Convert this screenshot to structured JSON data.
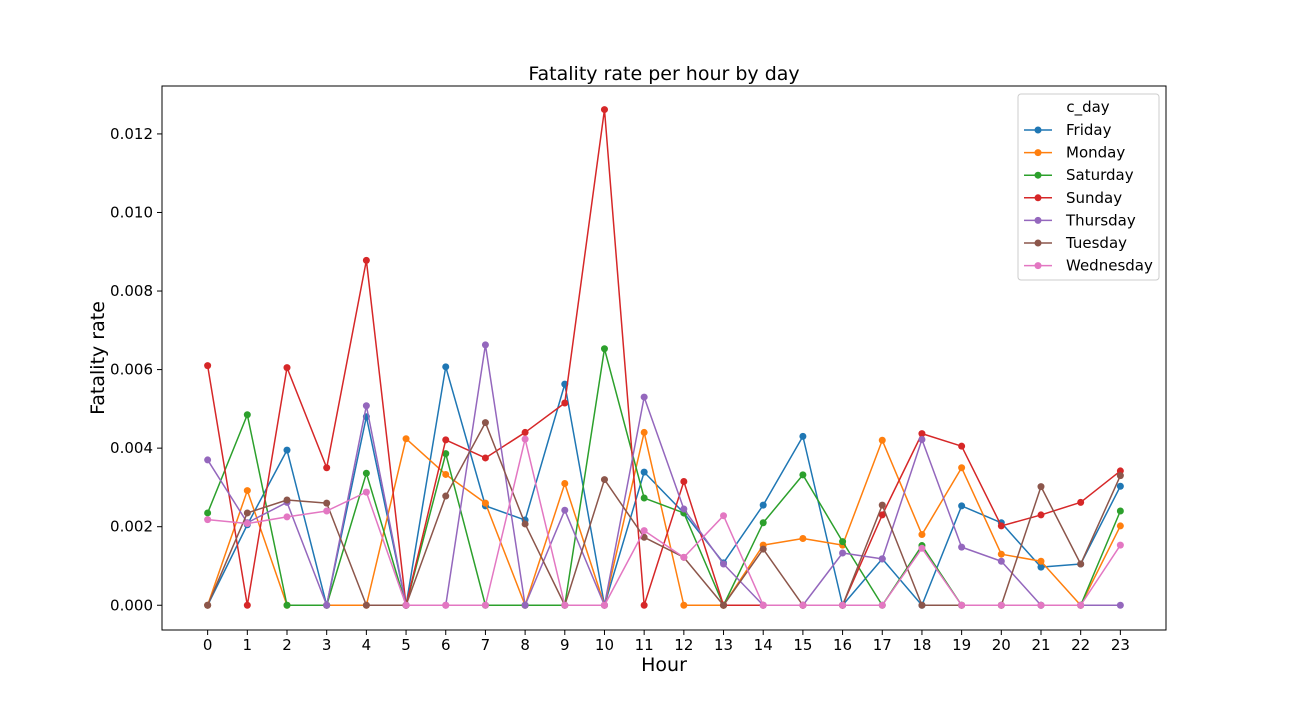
{
  "chart_data": {
    "type": "line",
    "title": "Fatality rate per hour by day",
    "xlabel": "Hour",
    "ylabel": "Fatality rate",
    "x": [
      0,
      1,
      2,
      3,
      4,
      5,
      6,
      7,
      8,
      9,
      10,
      11,
      12,
      13,
      14,
      15,
      16,
      17,
      18,
      19,
      20,
      21,
      22,
      23
    ],
    "xticks": [
      "0",
      "1",
      "2",
      "3",
      "4",
      "5",
      "6",
      "7",
      "8",
      "9",
      "10",
      "11",
      "12",
      "13",
      "14",
      "15",
      "16",
      "17",
      "18",
      "19",
      "20",
      "21",
      "22",
      "23"
    ],
    "yticks": [
      0,
      0.002,
      0.004,
      0.006,
      0.008,
      0.01,
      0.012
    ],
    "ytick_labels": [
      "0.000",
      "0.002",
      "0.004",
      "0.006",
      "0.008",
      "0.010",
      "0.012"
    ],
    "ylim": [
      -0.00063,
      0.01322
    ],
    "xlim": [
      -1.15,
      24.15
    ],
    "grid": false,
    "legend": {
      "title": "c_day",
      "placement": "top-right"
    },
    "series": [
      {
        "name": "Friday",
        "color": "#1f77b4",
        "values": [
          0,
          0.00205,
          0.00395,
          0,
          0.0048,
          0,
          0.00607,
          0.00253,
          0.00217,
          0.00563,
          0,
          0.00339,
          0.00235,
          0.00108,
          0.00255,
          0.0043,
          0,
          0.00118,
          0,
          0.00253,
          0.0021,
          0.00097,
          0.00105,
          0.00303
        ]
      },
      {
        "name": "Monday",
        "color": "#ff7f0e",
        "values": [
          0,
          0.00292,
          0,
          0,
          0,
          0.00424,
          0.00333,
          0.0026,
          0,
          0.0031,
          0,
          0.0044,
          0,
          0,
          0.00153,
          0.0017,
          0.00153,
          0.0042,
          0.0018,
          0.0035,
          0.0013,
          0.00112,
          0,
          0.00202
        ]
      },
      {
        "name": "Saturday",
        "color": "#2ca02c",
        "values": [
          0.00235,
          0.00485,
          0,
          0,
          0.00336,
          0,
          0.00386,
          0,
          0,
          0,
          0.00653,
          0.00273,
          0.00235,
          0,
          0.0021,
          0.00332,
          0.00162,
          0,
          0.00152,
          0,
          0,
          0,
          0,
          0.0024
        ]
      },
      {
        "name": "Sunday",
        "color": "#d62728",
        "values": [
          0.0061,
          0,
          0.00605,
          0.0035,
          0.00878,
          0,
          0.00421,
          0.00375,
          0.0044,
          0.00515,
          0.01262,
          0,
          0.00315,
          0,
          0,
          0,
          0,
          0.0023,
          0.00437,
          0.00405,
          0.00202,
          0.0023,
          0.00262,
          0.00342
        ]
      },
      {
        "name": "Thursday",
        "color": "#9467bd",
        "values": [
          0.0037,
          0.0021,
          0.00262,
          0,
          0.00508,
          0,
          0,
          0.00663,
          0,
          0.00242,
          0,
          0.0053,
          0.00245,
          0.00105,
          0,
          0,
          0.00133,
          0.00118,
          0.00422,
          0.00148,
          0.00112,
          0,
          0,
          0
        ]
      },
      {
        "name": "Tuesday",
        "color": "#8c564b",
        "values": [
          0,
          0.00235,
          0.00268,
          0.0026,
          0,
          0,
          0.00278,
          0.00465,
          0.00207,
          0,
          0.0032,
          0.00173,
          0.00122,
          0,
          0.00143,
          0,
          0,
          0.00255,
          0,
          0,
          0,
          0.00302,
          0.00105,
          0.0033
        ]
      },
      {
        "name": "Wednesday",
        "color": "#e377c2",
        "values": [
          0.00218,
          0.00208,
          0.00225,
          0.0024,
          0.00288,
          0,
          0,
          0,
          0.00423,
          0,
          0,
          0.0019,
          0.00122,
          0.00228,
          0,
          0,
          0,
          0,
          0.00145,
          0,
          0,
          0,
          0,
          0.00153
        ]
      }
    ]
  }
}
